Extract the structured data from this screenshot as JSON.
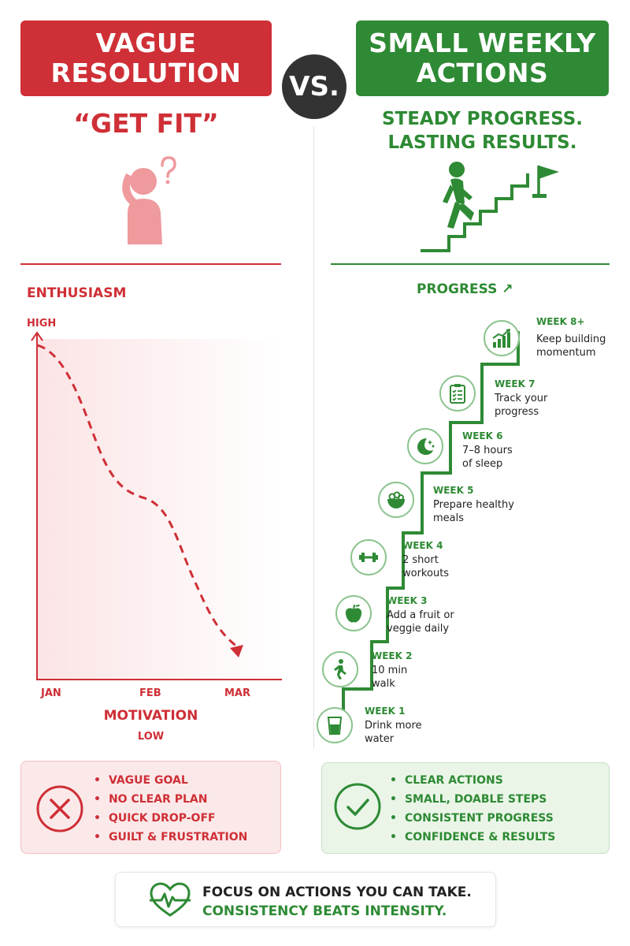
{
  "left": {
    "banner_line1": "VAGUE",
    "banner_line2": "RESOLUTION",
    "quote": "“GET FIT”",
    "chart": {
      "title": "ENTHUSIASM",
      "y_high": "HIGH",
      "y_low": "LOW",
      "x_label": "MOTIVATION",
      "x_ticks": [
        "JAN",
        "FEB",
        "MAR"
      ]
    },
    "box_items": [
      "VAGUE GOAL",
      "NO CLEAR PLAN",
      "QUICK DROP-OFF",
      "GUILT & FRUSTRATION"
    ]
  },
  "vs": "VS.",
  "right": {
    "banner_line1": "SMALL WEEKLY",
    "banner_line2": "ACTIONS",
    "tagline_line1": "STEADY PROGRESS.",
    "tagline_line2": "LASTING RESULTS.",
    "progress_label": "PROGRESS ↗",
    "weeks": [
      {
        "title": "WEEK 1",
        "text": "Drink more water",
        "icon": "water-glass-icon"
      },
      {
        "title": "WEEK 2",
        "text": "10 min walk",
        "icon": "walking-person-icon"
      },
      {
        "title": "WEEK 3",
        "text": "Add a fruit or veggie daily",
        "icon": "apple-icon"
      },
      {
        "title": "WEEK 4",
        "text": "2 short workouts",
        "icon": "dumbbell-icon"
      },
      {
        "title": "WEEK 5",
        "text": "Prepare healthy meals",
        "icon": "salad-bowl-icon"
      },
      {
        "title": "WEEK 6",
        "text": "7–8 hours of sleep",
        "icon": "moon-stars-icon"
      },
      {
        "title": "WEEK 7",
        "text": "Track your progress",
        "icon": "clipboard-checklist-icon"
      },
      {
        "title": "WEEK 8+",
        "text": "Keep building momentum",
        "icon": "growth-chart-icon"
      }
    ],
    "box_items": [
      "CLEAR ACTIONS",
      "SMALL, DOABLE STEPS",
      "CONSISTENT PROGRESS",
      "CONFIDENCE & RESULTS"
    ]
  },
  "footer": {
    "line1": "FOCUS ON ACTIONS YOU CAN TAKE.",
    "line2": "CONSISTENCY BEATS INTENSITY."
  },
  "colors": {
    "red": "#cf2f36",
    "green": "#2e8a34",
    "dark": "#333333"
  }
}
